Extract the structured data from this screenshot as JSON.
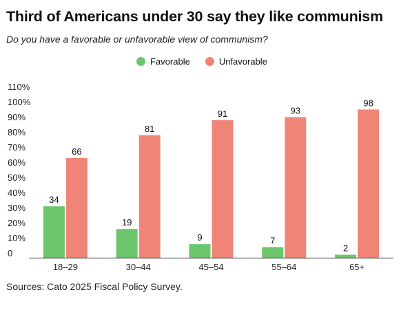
{
  "header": {
    "title": "Third of Americans under 30 say they like communism",
    "subtitle": "Do you have a favorable or unfavorable view of communism?"
  },
  "footer": {
    "source": "Sources: Cato 2025 Fiscal Policy Survey."
  },
  "colors": {
    "favorable": "#6cc76c",
    "unfavorable": "#f08577"
  },
  "chart_data": {
    "type": "bar",
    "title": "Third of Americans under 30 say they like communism",
    "subtitle": "Do you have a favorable or unfavorable view of communism?",
    "categories": [
      "18–29",
      "30–44",
      "45–54",
      "55–64",
      "65+"
    ],
    "series": [
      {
        "name": "Favorable",
        "values": [
          34,
          19,
          9,
          7,
          2
        ],
        "color": "#6cc76c"
      },
      {
        "name": "Unfavorable",
        "values": [
          66,
          81,
          91,
          93,
          98
        ],
        "color": "#f08577"
      }
    ],
    "yticks": [
      "0",
      "10%",
      "20%",
      "30%",
      "40%",
      "50%",
      "60%",
      "70%",
      "80%",
      "90%",
      "100%",
      "110%"
    ],
    "ylim": [
      0,
      110
    ],
    "xlabel": "",
    "ylabel": "",
    "legend_position": "top-center",
    "grid": false
  }
}
